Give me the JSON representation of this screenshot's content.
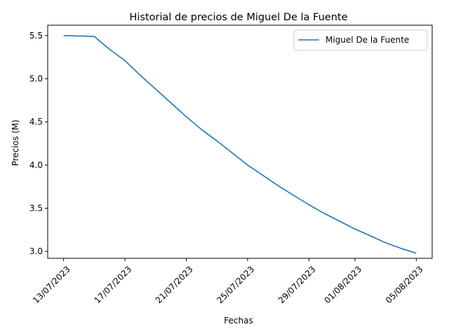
{
  "chart_data": {
    "type": "line",
    "title": "Historial de precios de Miguel De la Fuente",
    "xlabel": "Fechas",
    "ylabel": "Precios (M)",
    "x_ticks": [
      "13/07/2023",
      "17/07/2023",
      "21/07/2023",
      "25/07/2023",
      "29/07/2023",
      "01/08/2023",
      "05/08/2023"
    ],
    "y_ticks": [
      "3.0",
      "3.5",
      "4.0",
      "4.5",
      "5.0",
      "5.5"
    ],
    "ylim": [
      2.92,
      5.62
    ],
    "grid": false,
    "legend_position": "top-right",
    "series": [
      {
        "name": "Miguel De la Fuente",
        "color": "#1f77b4",
        "x": [
          "13/07/2023",
          "14/07/2023",
          "15/07/2023",
          "16/07/2023",
          "17/07/2023",
          "18/07/2023",
          "19/07/2023",
          "20/07/2023",
          "21/07/2023",
          "22/07/2023",
          "23/07/2023",
          "24/07/2023",
          "25/07/2023",
          "26/07/2023",
          "27/07/2023",
          "28/07/2023",
          "29/07/2023",
          "30/07/2023",
          "31/07/2023",
          "01/08/2023",
          "02/08/2023",
          "03/08/2023",
          "04/08/2023",
          "05/08/2023"
        ],
        "values": [
          5.5,
          5.495,
          5.49,
          5.34,
          5.21,
          5.04,
          4.88,
          4.72,
          4.56,
          4.41,
          4.28,
          4.14,
          4.0,
          3.88,
          3.76,
          3.65,
          3.54,
          3.44,
          3.35,
          3.26,
          3.18,
          3.1,
          3.035,
          2.98
        ]
      }
    ]
  }
}
